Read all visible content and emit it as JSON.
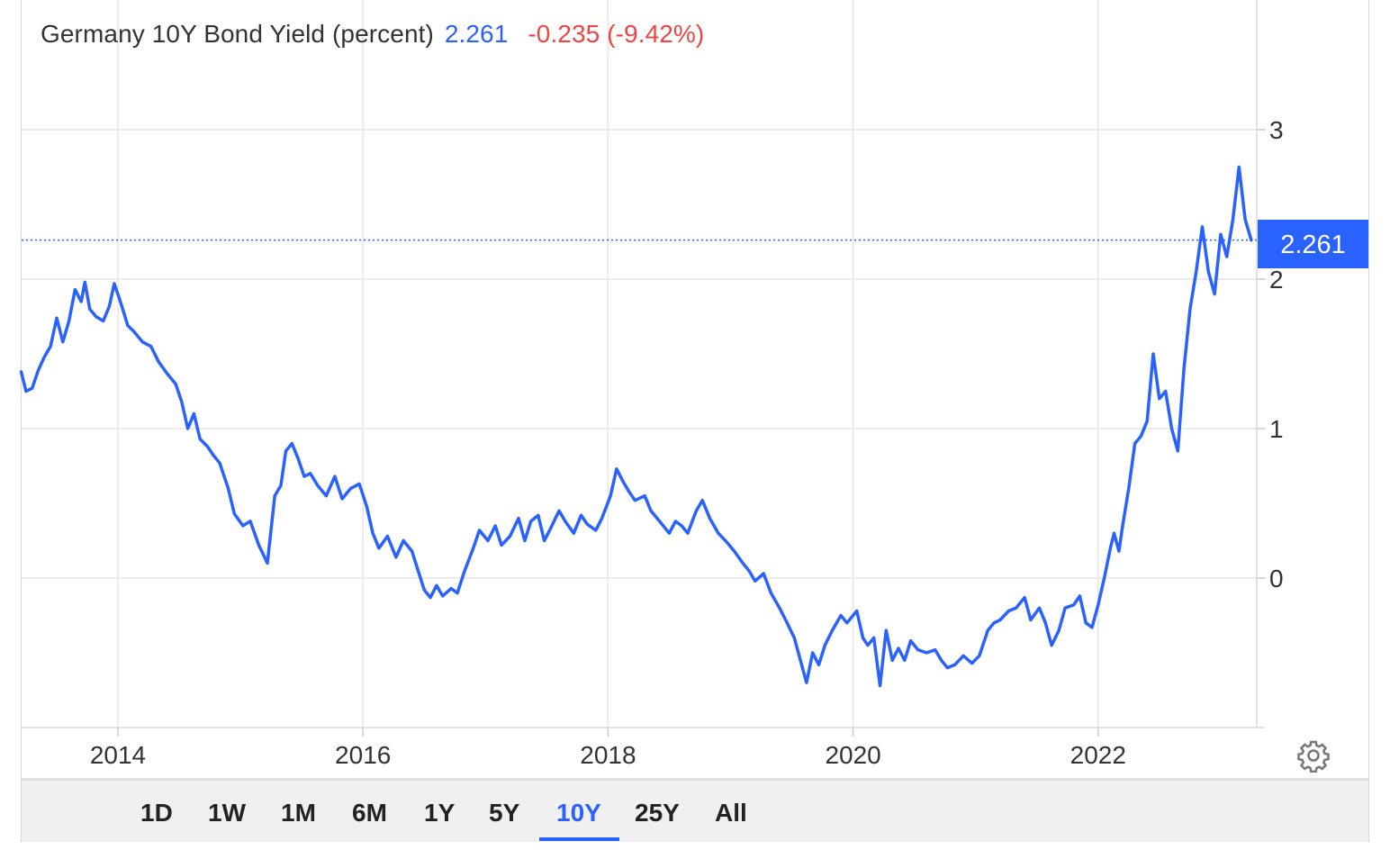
{
  "legend": {
    "title": "Germany 10Y Bond Yield (percent)",
    "last": "2.261",
    "change": "-0.235 (-9.42%)"
  },
  "price_tag": "2.261",
  "range_buttons": [
    "1D",
    "1W",
    "1M",
    "6M",
    "1Y",
    "5Y",
    "10Y",
    "25Y",
    "All"
  ],
  "active_range": "10Y",
  "colors": {
    "line": "#2962ff",
    "negative": "#ef4444",
    "grid": "#e6e6e6"
  },
  "icons": {
    "settings": "gear-icon"
  },
  "chart_data": {
    "type": "line",
    "title": "Germany 10Y Bond Yield (percent)",
    "xlabel": "",
    "ylabel": "",
    "x_ticks": [
      "2014",
      "2016",
      "2018",
      "2020",
      "2022"
    ],
    "y_ticks": [
      0,
      1,
      2,
      3
    ],
    "ylim": [
      -1,
      3.9
    ],
    "xlim": [
      2013.2,
      2023.35
    ],
    "grid": true,
    "last_value": 2.261,
    "series": [
      {
        "name": "",
        "points": [
          [
            2013.21,
            1.38
          ],
          [
            2013.25,
            1.25
          ],
          [
            2013.3,
            1.27
          ],
          [
            2013.35,
            1.39
          ],
          [
            2013.4,
            1.48
          ],
          [
            2013.45,
            1.55
          ],
          [
            2013.5,
            1.74
          ],
          [
            2013.55,
            1.58
          ],
          [
            2013.6,
            1.72
          ],
          [
            2013.65,
            1.93
          ],
          [
            2013.7,
            1.85
          ],
          [
            2013.73,
            1.98
          ],
          [
            2013.77,
            1.8
          ],
          [
            2013.82,
            1.75
          ],
          [
            2013.88,
            1.72
          ],
          [
            2013.93,
            1.82
          ],
          [
            2013.97,
            1.97
          ],
          [
            2014.02,
            1.85
          ],
          [
            2014.08,
            1.69
          ],
          [
            2014.13,
            1.65
          ],
          [
            2014.2,
            1.58
          ],
          [
            2014.27,
            1.55
          ],
          [
            2014.33,
            1.45
          ],
          [
            2014.4,
            1.37
          ],
          [
            2014.47,
            1.3
          ],
          [
            2014.52,
            1.18
          ],
          [
            2014.57,
            1.0
          ],
          [
            2014.62,
            1.1
          ],
          [
            2014.67,
            0.93
          ],
          [
            2014.73,
            0.88
          ],
          [
            2014.78,
            0.82
          ],
          [
            2014.83,
            0.77
          ],
          [
            2014.9,
            0.6
          ],
          [
            2014.95,
            0.43
          ],
          [
            2015.02,
            0.35
          ],
          [
            2015.08,
            0.38
          ],
          [
            2015.15,
            0.22
          ],
          [
            2015.22,
            0.1
          ],
          [
            2015.28,
            0.55
          ],
          [
            2015.33,
            0.62
          ],
          [
            2015.37,
            0.85
          ],
          [
            2015.42,
            0.9
          ],
          [
            2015.47,
            0.8
          ],
          [
            2015.52,
            0.68
          ],
          [
            2015.57,
            0.7
          ],
          [
            2015.63,
            0.62
          ],
          [
            2015.7,
            0.55
          ],
          [
            2015.77,
            0.68
          ],
          [
            2015.83,
            0.53
          ],
          [
            2015.9,
            0.6
          ],
          [
            2015.97,
            0.63
          ],
          [
            2016.03,
            0.48
          ],
          [
            2016.08,
            0.3
          ],
          [
            2016.13,
            0.2
          ],
          [
            2016.2,
            0.28
          ],
          [
            2016.27,
            0.14
          ],
          [
            2016.33,
            0.25
          ],
          [
            2016.4,
            0.18
          ],
          [
            2016.45,
            0.05
          ],
          [
            2016.5,
            -0.08
          ],
          [
            2016.55,
            -0.13
          ],
          [
            2016.6,
            -0.05
          ],
          [
            2016.65,
            -0.12
          ],
          [
            2016.72,
            -0.07
          ],
          [
            2016.77,
            -0.1
          ],
          [
            2016.83,
            0.05
          ],
          [
            2016.9,
            0.2
          ],
          [
            2016.95,
            0.32
          ],
          [
            2017.02,
            0.25
          ],
          [
            2017.08,
            0.35
          ],
          [
            2017.13,
            0.22
          ],
          [
            2017.2,
            0.28
          ],
          [
            2017.27,
            0.4
          ],
          [
            2017.32,
            0.25
          ],
          [
            2017.37,
            0.38
          ],
          [
            2017.43,
            0.42
          ],
          [
            2017.48,
            0.25
          ],
          [
            2017.53,
            0.33
          ],
          [
            2017.6,
            0.45
          ],
          [
            2017.65,
            0.38
          ],
          [
            2017.72,
            0.3
          ],
          [
            2017.78,
            0.42
          ],
          [
            2017.83,
            0.36
          ],
          [
            2017.9,
            0.32
          ],
          [
            2017.95,
            0.4
          ],
          [
            2018.02,
            0.55
          ],
          [
            2018.07,
            0.73
          ],
          [
            2018.12,
            0.65
          ],
          [
            2018.17,
            0.58
          ],
          [
            2018.22,
            0.52
          ],
          [
            2018.3,
            0.55
          ],
          [
            2018.35,
            0.45
          ],
          [
            2018.42,
            0.38
          ],
          [
            2018.5,
            0.3
          ],
          [
            2018.55,
            0.38
          ],
          [
            2018.6,
            0.35
          ],
          [
            2018.65,
            0.3
          ],
          [
            2018.72,
            0.45
          ],
          [
            2018.77,
            0.52
          ],
          [
            2018.83,
            0.4
          ],
          [
            2018.9,
            0.3
          ],
          [
            2018.97,
            0.24
          ],
          [
            2019.03,
            0.18
          ],
          [
            2019.1,
            0.1
          ],
          [
            2019.15,
            0.05
          ],
          [
            2019.2,
            -0.02
          ],
          [
            2019.27,
            0.03
          ],
          [
            2019.33,
            -0.1
          ],
          [
            2019.4,
            -0.2
          ],
          [
            2019.45,
            -0.28
          ],
          [
            2019.52,
            -0.4
          ],
          [
            2019.57,
            -0.55
          ],
          [
            2019.62,
            -0.7
          ],
          [
            2019.67,
            -0.5
          ],
          [
            2019.72,
            -0.58
          ],
          [
            2019.77,
            -0.45
          ],
          [
            2019.83,
            -0.35
          ],
          [
            2019.9,
            -0.25
          ],
          [
            2019.95,
            -0.3
          ],
          [
            2020.03,
            -0.22
          ],
          [
            2020.08,
            -0.4
          ],
          [
            2020.12,
            -0.45
          ],
          [
            2020.17,
            -0.4
          ],
          [
            2020.22,
            -0.72
          ],
          [
            2020.27,
            -0.35
          ],
          [
            2020.32,
            -0.55
          ],
          [
            2020.37,
            -0.47
          ],
          [
            2020.42,
            -0.55
          ],
          [
            2020.47,
            -0.42
          ],
          [
            2020.53,
            -0.48
          ],
          [
            2020.6,
            -0.5
          ],
          [
            2020.67,
            -0.48
          ],
          [
            2020.72,
            -0.55
          ],
          [
            2020.77,
            -0.6
          ],
          [
            2020.83,
            -0.58
          ],
          [
            2020.9,
            -0.52
          ],
          [
            2020.97,
            -0.57
          ],
          [
            2021.03,
            -0.52
          ],
          [
            2021.1,
            -0.35
          ],
          [
            2021.15,
            -0.3
          ],
          [
            2021.2,
            -0.28
          ],
          [
            2021.27,
            -0.22
          ],
          [
            2021.33,
            -0.2
          ],
          [
            2021.4,
            -0.13
          ],
          [
            2021.45,
            -0.28
          ],
          [
            2021.52,
            -0.2
          ],
          [
            2021.57,
            -0.3
          ],
          [
            2021.62,
            -0.45
          ],
          [
            2021.68,
            -0.35
          ],
          [
            2021.73,
            -0.2
          ],
          [
            2021.8,
            -0.18
          ],
          [
            2021.85,
            -0.12
          ],
          [
            2021.9,
            -0.3
          ],
          [
            2021.95,
            -0.33
          ],
          [
            2022.0,
            -0.18
          ],
          [
            2022.05,
            0.0
          ],
          [
            2022.1,
            0.2
          ],
          [
            2022.13,
            0.3
          ],
          [
            2022.17,
            0.18
          ],
          [
            2022.2,
            0.35
          ],
          [
            2022.25,
            0.6
          ],
          [
            2022.3,
            0.9
          ],
          [
            2022.35,
            0.95
          ],
          [
            2022.4,
            1.05
          ],
          [
            2022.45,
            1.5
          ],
          [
            2022.5,
            1.2
          ],
          [
            2022.55,
            1.25
          ],
          [
            2022.6,
            1.0
          ],
          [
            2022.65,
            0.85
          ],
          [
            2022.7,
            1.4
          ],
          [
            2022.75,
            1.8
          ],
          [
            2022.8,
            2.05
          ],
          [
            2022.85,
            2.35
          ],
          [
            2022.9,
            2.05
          ],
          [
            2022.95,
            1.9
          ],
          [
            2023.0,
            2.3
          ],
          [
            2023.05,
            2.15
          ],
          [
            2023.1,
            2.4
          ],
          [
            2023.15,
            2.75
          ],
          [
            2023.2,
            2.4
          ],
          [
            2023.25,
            2.261
          ]
        ]
      }
    ]
  }
}
